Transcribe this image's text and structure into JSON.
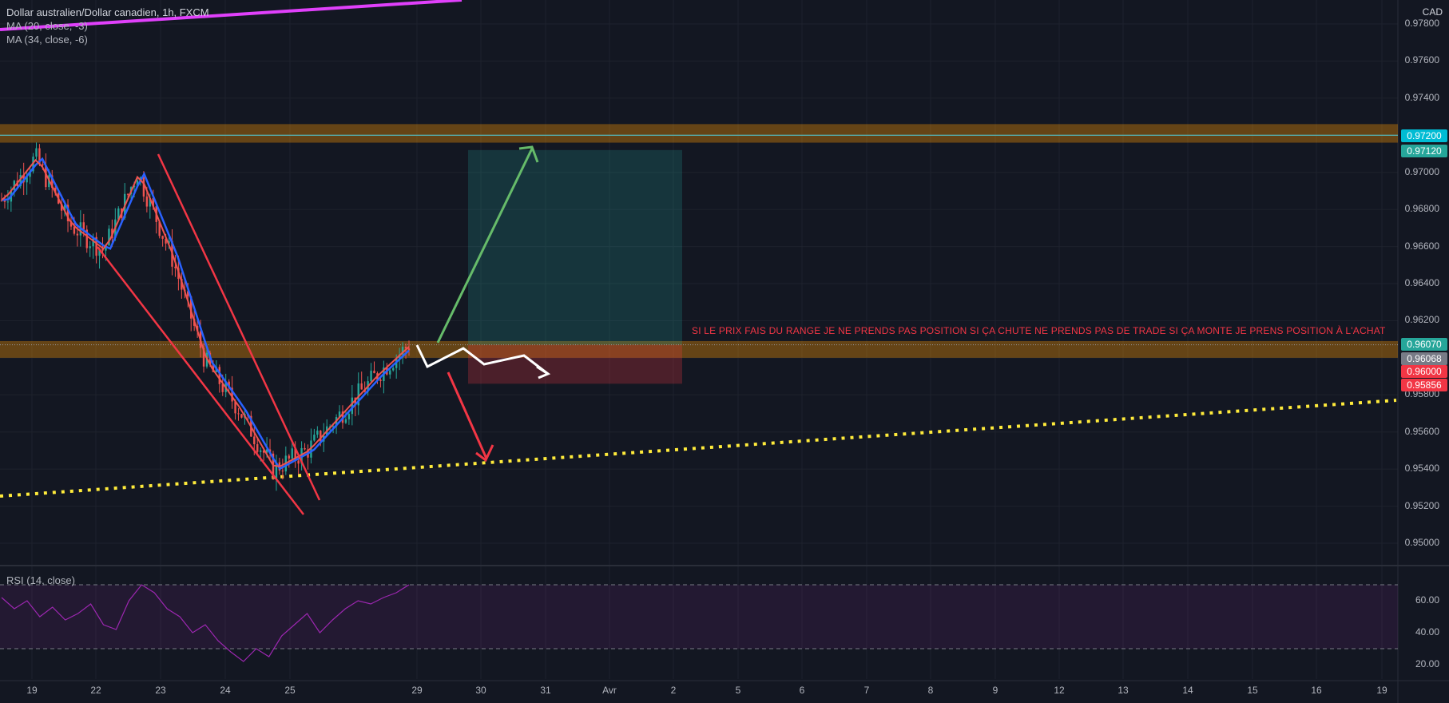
{
  "header": {
    "title": "Dollar australien/Dollar canadien, 1h, FXCM",
    "ma20_label": "MA (20, close, -3)",
    "ma34_label": "MA (34, close, -6)",
    "rsi_label": "RSI (14, close)",
    "currency": "CAD"
  },
  "annotation": "SI LE PRIX FAIS DU RANGE JE NE PRENDS PAS POSITION SI ÇA CHUTE NE PRENDS PAS DE TRADE SI ÇA MONTE JE PRENS POSITION À L'ACHAT",
  "colors": {
    "background": "#131722",
    "up": "#26a69a",
    "down": "#ef5350",
    "ma20": "#ef5350",
    "ma34": "#2962ff",
    "rsi": "#9c27b0",
    "zone": "#ff9800",
    "target": "#26a69a",
    "stop": "#f23645",
    "trend_dotted": "#ffeb3b",
    "trend_magenta": "#e040fb"
  },
  "chart_data": [
    {
      "type": "candlestick",
      "title": "Dollar australien/Dollar canadien, 1h, FXCM",
      "y_unit": "CAD",
      "ylim": [
        0.949,
        0.979
      ],
      "y_ticks": [
        "0.97800",
        "0.97600",
        "0.97400",
        "0.97200",
        "0.97000",
        "0.96800",
        "0.96600",
        "0.96400",
        "0.96200",
        "0.96000",
        "0.95800",
        "0.95600",
        "0.95400",
        "0.95200",
        "0.95000"
      ],
      "x_ticks": [
        "19",
        "22",
        "23",
        "24",
        "25",
        "29",
        "30",
        "31",
        "Avr",
        "2",
        "5",
        "6",
        "7",
        "8",
        "9",
        "12",
        "13",
        "14",
        "15",
        "16",
        "19"
      ],
      "series_close_approx": [
        {
          "x": "19",
          "y": 0.9685
        },
        {
          "x": "19.5",
          "y": 0.9708
        },
        {
          "x": "22",
          "y": 0.9672
        },
        {
          "x": "22.5",
          "y": 0.9658
        },
        {
          "x": "23",
          "y": 0.97
        },
        {
          "x": "23.5",
          "y": 0.9655
        },
        {
          "x": "24",
          "y": 0.9598
        },
        {
          "x": "24.5",
          "y": 0.9572
        },
        {
          "x": "25",
          "y": 0.954
        },
        {
          "x": "25.5",
          "y": 0.955
        },
        {
          "x": "26",
          "y": 0.957
        },
        {
          "x": "26.5",
          "y": 0.959
        },
        {
          "x": "29",
          "y": 0.9607
        }
      ],
      "price_tags": [
        {
          "label": "0.97200",
          "color": "#00bcd4"
        },
        {
          "label": "0.97120",
          "color": "#26a69a"
        },
        {
          "label": "0.96070",
          "color": "#26a69a"
        },
        {
          "label": "0.96068",
          "color": "#787b86"
        },
        {
          "label": "0.96000",
          "color": "#f23645"
        },
        {
          "label": "0.95856",
          "color": "#f23645"
        }
      ],
      "resistance_zone": [
        0.9716,
        0.9726
      ],
      "support_zone": [
        0.96,
        0.9609
      ],
      "long_position": {
        "entry": 0.9607,
        "target": 0.9712,
        "stop": 0.9586
      }
    },
    {
      "type": "line",
      "title": "RSI (14, close)",
      "ylim": [
        10,
        80
      ],
      "y_ticks": [
        "60.00",
        "40.00",
        "20.00"
      ],
      "bands": [
        30,
        70
      ],
      "values_approx": [
        62,
        55,
        60,
        50,
        56,
        48,
        52,
        58,
        45,
        42,
        60,
        70,
        65,
        55,
        50,
        40,
        45,
        35,
        28,
        22,
        30,
        25,
        38,
        45,
        52,
        40,
        48,
        55,
        60,
        58,
        62,
        65,
        70
      ]
    }
  ]
}
